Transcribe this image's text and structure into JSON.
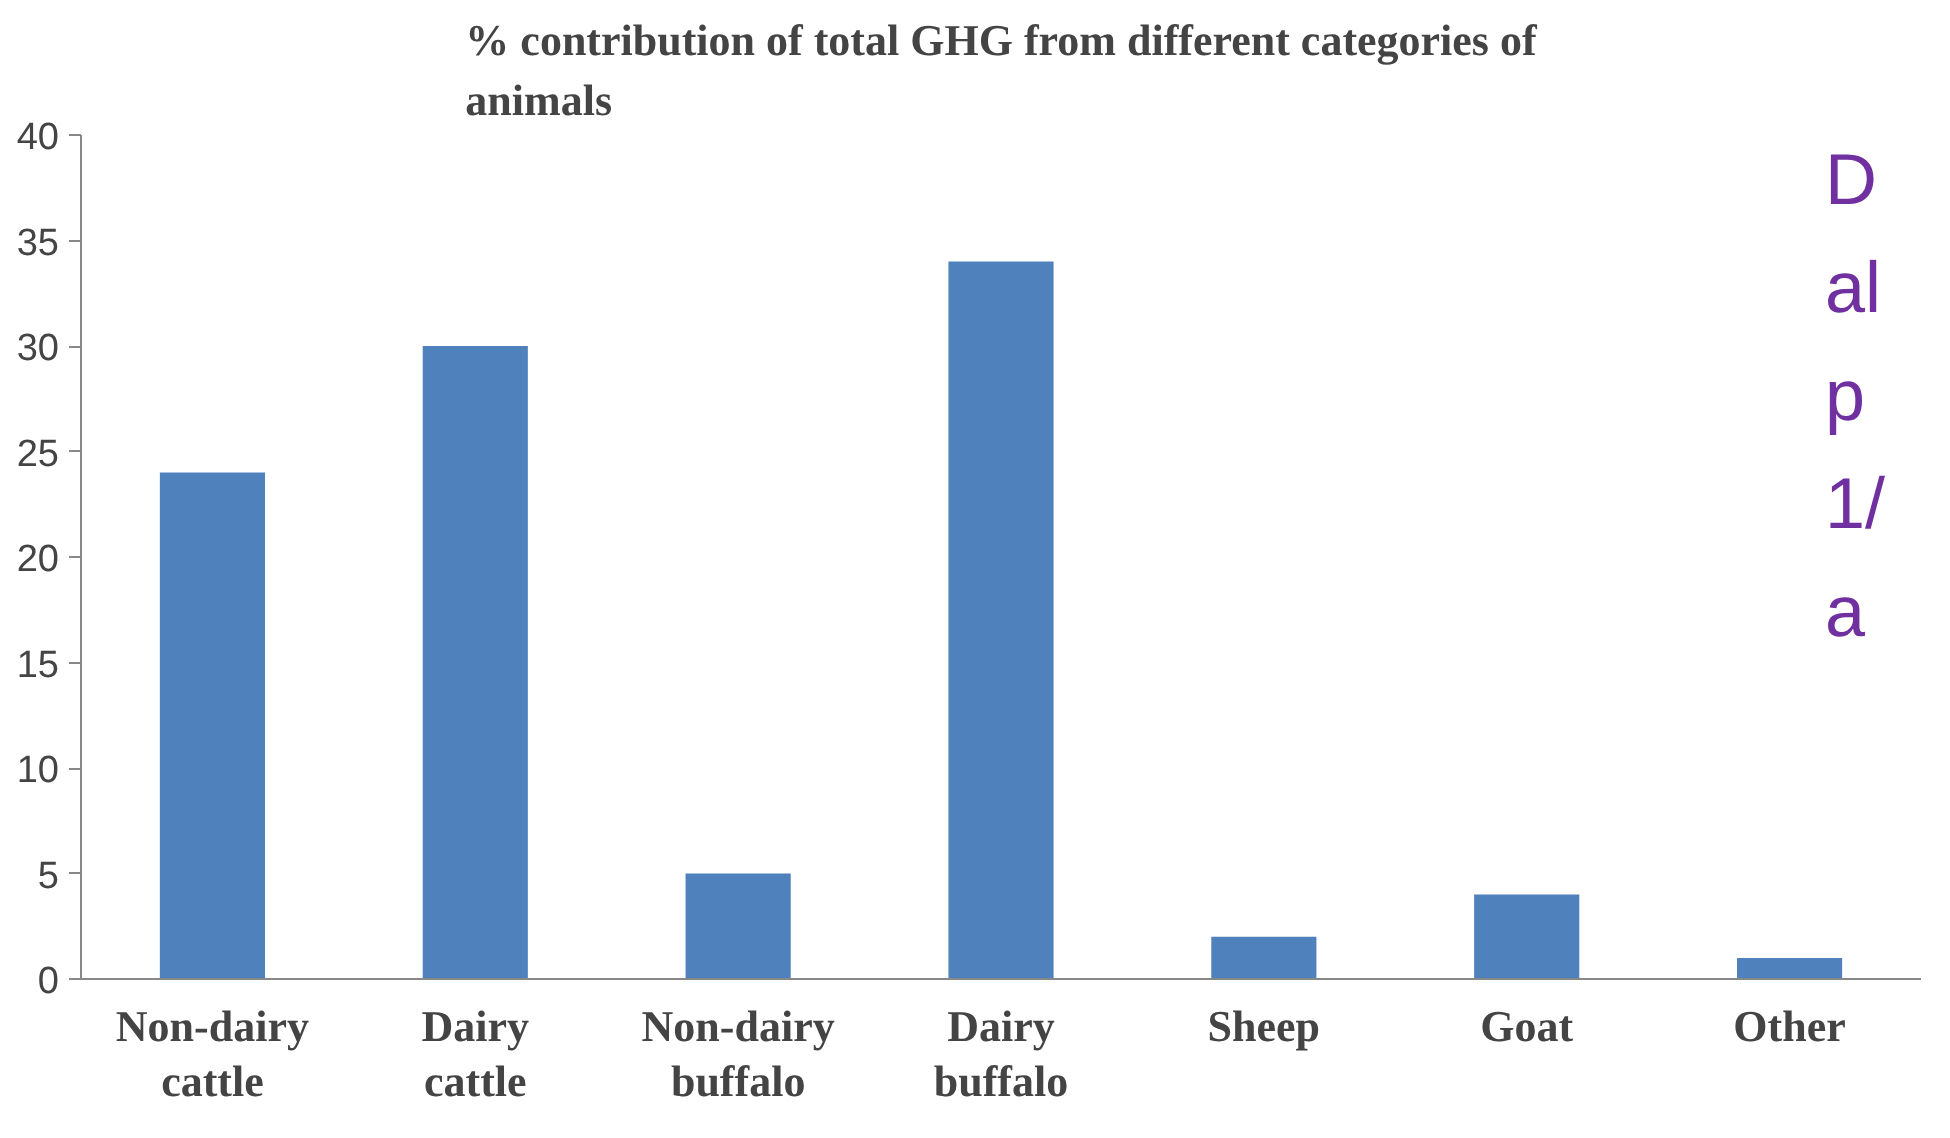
{
  "chart_data": {
    "type": "bar",
    "title": "% contribution of total GHG from different categories of animals",
    "categories": [
      "Non-dairy cattle",
      "Dairy cattle",
      "Non-dairy buffalo",
      "Dairy buffalo",
      "Sheep",
      "Goat",
      "Other"
    ],
    "values": [
      24,
      30,
      5,
      34,
      2,
      4,
      1
    ],
    "color": "#4f81bd",
    "ylim": [
      0,
      40
    ],
    "yticks": [
      0,
      5,
      10,
      15,
      20,
      25,
      30,
      35,
      40
    ],
    "grid": false,
    "annotations": [
      "D",
      "al",
      "p",
      "1/",
      "a"
    ]
  }
}
